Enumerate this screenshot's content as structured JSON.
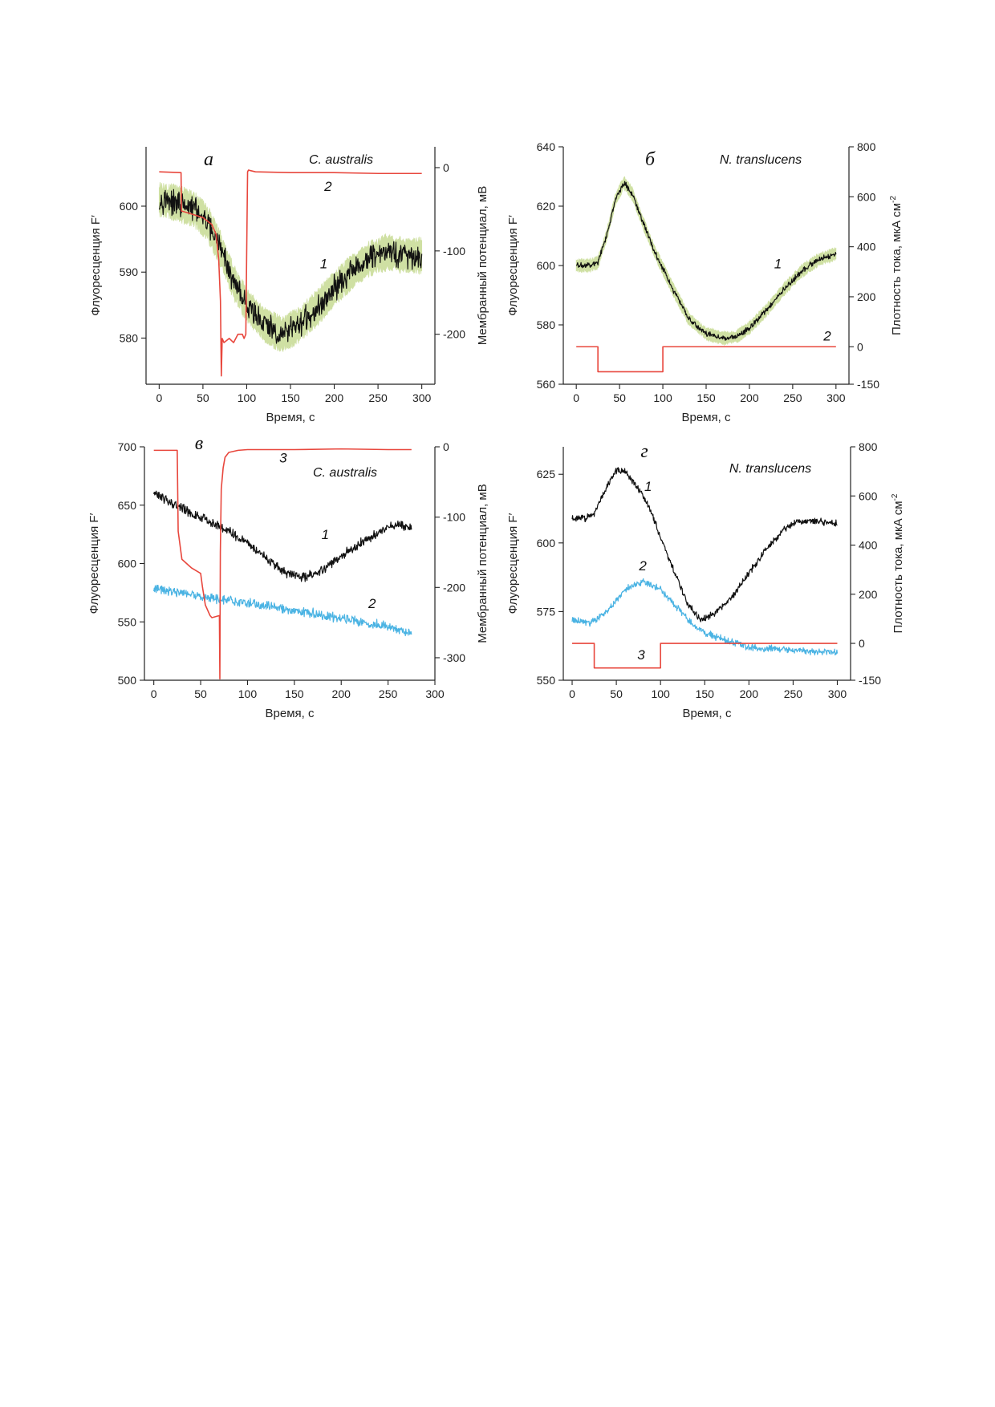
{
  "colors": {
    "fluor": "#111111",
    "fluor_sd": "#cfe0a3",
    "electric": "#e8473d",
    "cyan": "#4ab3e3",
    "axis": "#222222"
  },
  "chart_data": [
    {
      "id": "a",
      "type": "line",
      "panel_label": "а",
      "species": "C. australis",
      "xlabel": "Время, с",
      "ylabel_left": "Флуоресценция F′",
      "ylabel_right": "Мембранный потенциал, мВ",
      "xlim": [
        -15,
        315
      ],
      "ylim_left": [
        573,
        609
      ],
      "ylim_right": [
        -260,
        25
      ],
      "xticks": [
        0,
        50,
        100,
        150,
        200,
        250,
        300
      ],
      "yticks_left": [
        580,
        590,
        600
      ],
      "yticks_right": [
        0,
        -100,
        -200
      ],
      "series": [
        {
          "label": "1",
          "axis": "left",
          "color_key": "fluor",
          "noise": 1.4,
          "sd": 2.2,
          "x": [
            0,
            20,
            40,
            55,
            70,
            85,
            100,
            120,
            140,
            160,
            180,
            200,
            220,
            240,
            260,
            280,
            300
          ],
          "y": [
            601,
            600.5,
            599.5,
            597.5,
            593.5,
            588.5,
            585,
            582,
            580.5,
            582,
            584.5,
            587.5,
            590,
            592,
            593,
            592.5,
            592.5
          ]
        },
        {
          "label": "2",
          "axis": "right",
          "color_key": "electric",
          "noise": 0,
          "x": [
            0,
            25,
            25.5,
            35,
            50,
            60,
            65,
            68,
            70,
            71,
            72,
            74,
            80,
            85,
            90,
            95,
            97,
            99,
            100,
            101,
            102,
            110,
            150,
            200,
            250,
            300
          ],
          "y": [
            -5,
            -6,
            -52,
            -55,
            -60,
            -68,
            -80,
            -110,
            -160,
            -250,
            -205,
            -210,
            -205,
            -210,
            -200,
            -200,
            -205,
            -200,
            -100,
            -5,
            -3,
            -5,
            -6,
            -6,
            -7,
            -7
          ]
        }
      ],
      "annotations": [
        {
          "text": "1",
          "x": 188,
          "y": 590.6,
          "axis": "left"
        },
        {
          "text": "2",
          "x": 193,
          "y": -28,
          "axis": "right"
        }
      ]
    },
    {
      "id": "b",
      "type": "line",
      "panel_label": "б",
      "species": "N. translucens",
      "xlabel": "Время, с",
      "ylabel_left": "Флуоресценция F′",
      "ylabel_right_main": "Плотность тока, мкА см",
      "ylabel_right_sup": "-2",
      "xlim": [
        -15,
        315
      ],
      "ylim_left": [
        560,
        640
      ],
      "ylim_right": [
        -150,
        800
      ],
      "xticks": [
        0,
        50,
        100,
        150,
        200,
        250,
        300
      ],
      "yticks_left": [
        560,
        580,
        600,
        620,
        640
      ],
      "yticks_right": [
        -150,
        0,
        200,
        400,
        600,
        800
      ],
      "series": [
        {
          "label": "1",
          "axis": "left",
          "color_key": "fluor",
          "noise": 0.7,
          "sd": 1.8,
          "x": [
            0,
            15,
            25,
            35,
            45,
            55,
            65,
            75,
            90,
            110,
            130,
            150,
            170,
            185,
            200,
            220,
            240,
            260,
            280,
            300
          ],
          "y": [
            600,
            600,
            601,
            610,
            622,
            628,
            624,
            616,
            605,
            593,
            582,
            577,
            575.5,
            576,
            579,
            585,
            592,
            598,
            602,
            604
          ]
        },
        {
          "label": "2",
          "axis": "right",
          "color_key": "electric",
          "noise": 0,
          "x": [
            0,
            25,
            25,
            100,
            100,
            300
          ],
          "y": [
            0,
            0,
            -100,
            -100,
            0,
            0
          ]
        }
      ],
      "annotations": [
        {
          "text": "1",
          "x": 233,
          "y": 599,
          "axis": "left"
        },
        {
          "text": "2",
          "x": 290,
          "y": 25,
          "axis": "right"
        }
      ]
    },
    {
      "id": "c",
      "type": "line",
      "panel_label": "в",
      "species": "C. australis",
      "xlabel": "Время, с",
      "ylabel_left": "Флуоресценция F′",
      "ylabel_right": "Мембранный потенциал, мВ",
      "xlim": [
        -10,
        300
      ],
      "ylim_left": [
        500,
        700
      ],
      "ylim_right": [
        -332,
        0
      ],
      "xticks": [
        0,
        50,
        100,
        150,
        200,
        250,
        300
      ],
      "yticks_left": [
        500,
        550,
        600,
        650,
        700
      ],
      "yticks_right": [
        0,
        -100,
        -200,
        -300
      ],
      "series": [
        {
          "label": "1",
          "axis": "left",
          "color_key": "fluor",
          "noise": 3,
          "x": [
            0,
            20,
            40,
            60,
            80,
            100,
            120,
            140,
            160,
            180,
            200,
            220,
            240,
            260,
            275
          ],
          "y": [
            660,
            652,
            643,
            636,
            628,
            618,
            604,
            592,
            588,
            595,
            606,
            617,
            627,
            634,
            630
          ]
        },
        {
          "label": "2",
          "axis": "left",
          "color_key": "cyan",
          "noise": 3,
          "x": [
            0,
            50,
            100,
            150,
            200,
            250,
            275
          ],
          "y": [
            578,
            572,
            566,
            560,
            553,
            546,
            541
          ]
        },
        {
          "label": "3",
          "axis": "right",
          "color_key": "electric",
          "noise": 0,
          "x": [
            0,
            25,
            26,
            30,
            40,
            50,
            52,
            55,
            60,
            62,
            70,
            70.5,
            71,
            72,
            74,
            76,
            80,
            90,
            100,
            150,
            200,
            250,
            275
          ],
          "y": [
            -5,
            -5,
            -120,
            -160,
            -172,
            -180,
            -200,
            -225,
            -240,
            -243,
            -240,
            -330,
            -150,
            -60,
            -30,
            -15,
            -8,
            -5,
            -4,
            -4,
            -3,
            -4,
            -4
          ]
        }
      ],
      "annotations": [
        {
          "text": "1",
          "x": 183,
          "y": 621,
          "axis": "left"
        },
        {
          "text": "2",
          "x": 233,
          "y": 562,
          "axis": "left"
        },
        {
          "text": "3",
          "x": 138,
          "y": -22,
          "axis": "right"
        }
      ]
    },
    {
      "id": "d",
      "type": "line",
      "panel_label": "г",
      "species": "N. translucens",
      "xlabel": "Время, с",
      "ylabel_left": "Флуоресценция F′",
      "ylabel_right_main": "Плотность тока, мкА см",
      "ylabel_right_sup": "-2",
      "xlim": [
        -10,
        315
      ],
      "ylim_left": [
        550,
        635
      ],
      "ylim_right": [
        -150,
        800
      ],
      "xticks": [
        0,
        50,
        100,
        150,
        200,
        250,
        300
      ],
      "yticks_left": [
        550,
        575,
        600,
        625
      ],
      "yticks_right": [
        -150,
        0,
        200,
        400,
        600,
        800
      ],
      "series": [
        {
          "label": "1",
          "axis": "left",
          "color_key": "fluor",
          "noise": 0.9,
          "x": [
            0,
            15,
            25,
            35,
            45,
            52,
            60,
            70,
            80,
            90,
            100,
            115,
            130,
            145,
            160,
            180,
            200,
            220,
            240,
            255,
            270,
            300
          ],
          "y": [
            609,
            609,
            611,
            618,
            624,
            627,
            626,
            622,
            617,
            611,
            602,
            590,
            578,
            572,
            574,
            580,
            589,
            598,
            605,
            608,
            608,
            607
          ]
        },
        {
          "label": "2",
          "axis": "left",
          "color_key": "cyan",
          "noise": 0.9,
          "x": [
            0,
            20,
            40,
            60,
            80,
            100,
            120,
            140,
            160,
            180,
            200,
            250,
            300
          ],
          "y": [
            572,
            571,
            575,
            583,
            586,
            583,
            576,
            569,
            566,
            564,
            562,
            561,
            560
          ]
        },
        {
          "label": "3",
          "axis": "right",
          "color_key": "electric",
          "noise": 0,
          "x": [
            0,
            25,
            25,
            100,
            100,
            300
          ],
          "y": [
            0,
            0,
            -100,
            -100,
            0,
            0
          ]
        }
      ],
      "annotations": [
        {
          "text": "1",
          "x": 86,
          "y": 619,
          "axis": "left"
        },
        {
          "text": "2",
          "x": 80,
          "y": 590,
          "axis": "left"
        },
        {
          "text": "3",
          "x": 78,
          "y": -65,
          "axis": "right"
        }
      ]
    }
  ]
}
